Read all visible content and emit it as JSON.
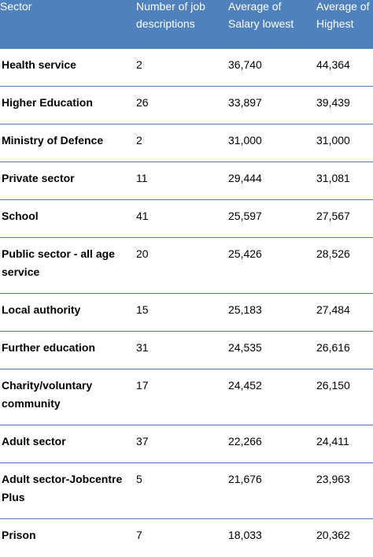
{
  "colors": {
    "header_bg": "#4f81bd",
    "header_text": "#ffffff",
    "row_border": "#4f81bd"
  },
  "headers": [
    "Sector",
    "Number of job\ndescriptions",
    "Average of\nSalary lowest",
    "Average of\nHighest"
  ],
  "rows": [
    {
      "sector": "Health service",
      "count": "2",
      "lowest": "36,740",
      "highest": "44,364"
    },
    {
      "sector": "Higher Education",
      "count": "26",
      "lowest": "33,897",
      "highest": "39,439"
    },
    {
      "sector": "Ministry of Defence",
      "count": "2",
      "lowest": "31,000",
      "highest": "31,000"
    },
    {
      "sector": "Private sector",
      "count": "11",
      "lowest": "29,444",
      "highest": "31,081"
    },
    {
      "sector": "School",
      "count": "41",
      "lowest": "25,597",
      "highest": "27,567"
    },
    {
      "sector": "Public sector  - all age\nservice",
      "count": "20",
      "lowest": "25,426",
      "highest": "28,526"
    },
    {
      "sector": "Local authority",
      "count": "15",
      "lowest": "25,183",
      "highest": "27,484"
    },
    {
      "sector": "Further education",
      "count": "31",
      "lowest": "24,535",
      "highest": "26,616"
    },
    {
      "sector": "Charity/voluntary\ncommunity",
      "count": "17",
      "lowest": "24,452",
      "highest": "26,150"
    },
    {
      "sector": "Adult sector",
      "count": "37",
      "lowest": "22,266",
      "highest": "24,411"
    },
    {
      "sector": "Adult sector-Jobcentre\nPlus",
      "count": "5",
      "lowest": "21,676",
      "highest": "23,963"
    },
    {
      "sector": "Prison",
      "count": "7",
      "lowest": "18,033",
      "highest": "20,362"
    }
  ]
}
